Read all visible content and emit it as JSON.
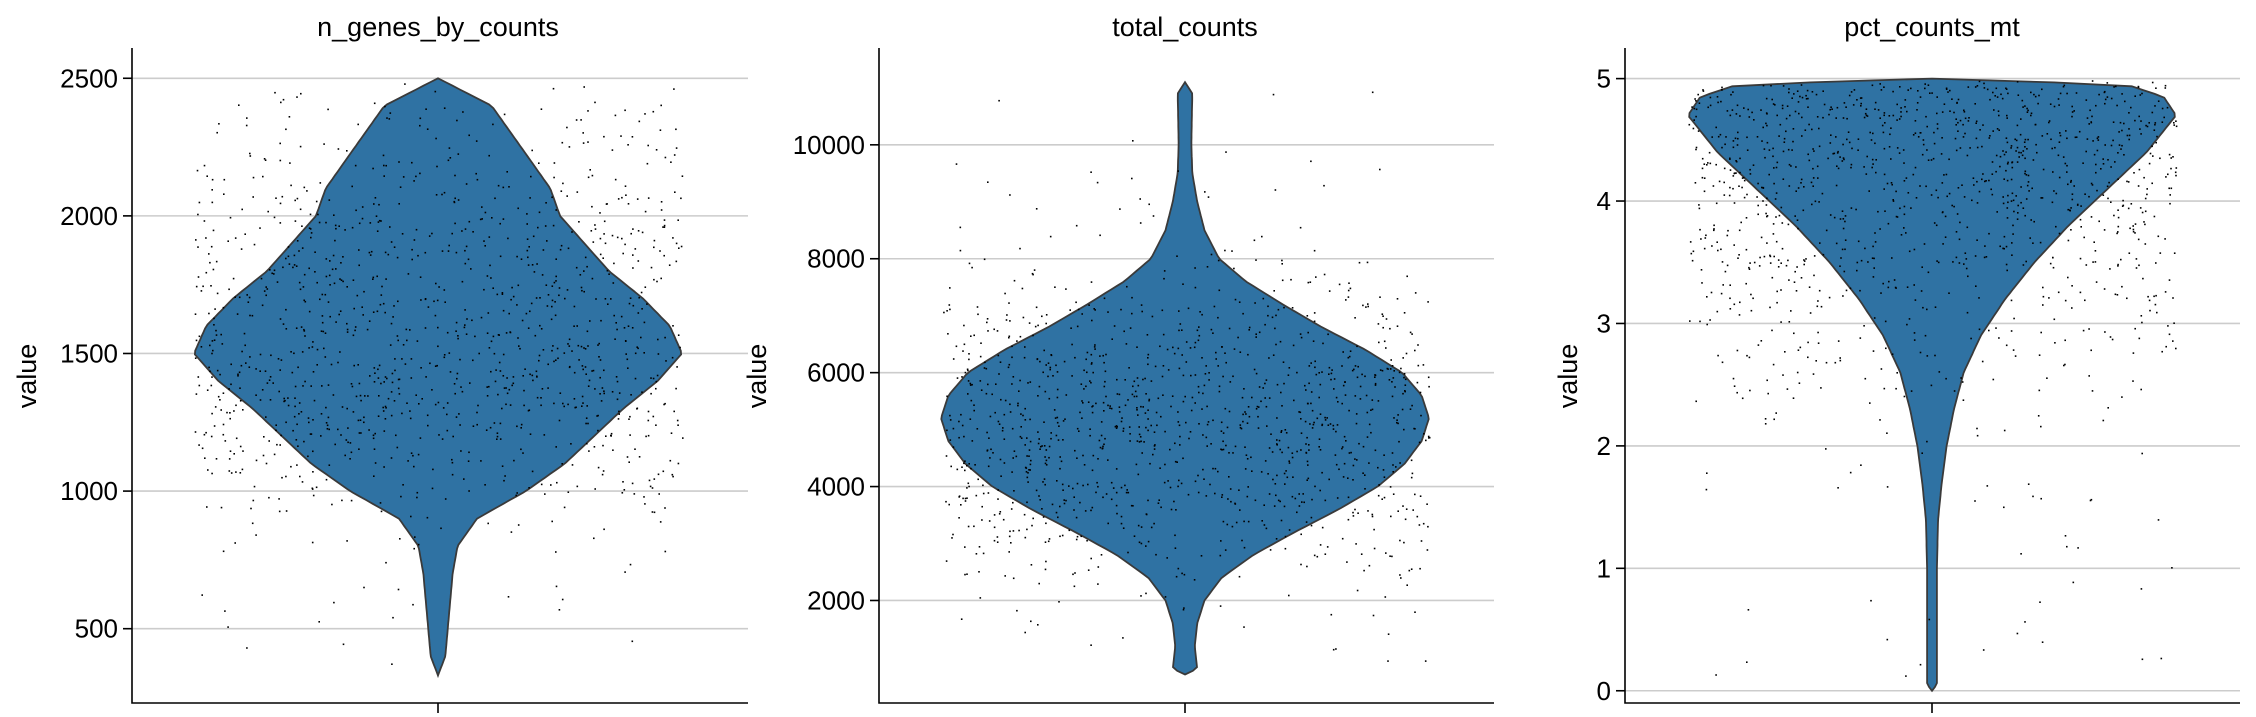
{
  "chart_data": [
    {
      "type": "violin",
      "title": "n_genes_by_counts",
      "xlabel": "",
      "ylabel": "value",
      "ylim": [
        230,
        2610
      ],
      "yticks": [
        500,
        1000,
        1500,
        2000,
        2500
      ],
      "grid": true,
      "color": "#2f72a3",
      "summary": {
        "min": 330,
        "max": 2500,
        "median": 1580,
        "mode": 1520,
        "n_points": 1200
      },
      "density_profile": [
        [
          330,
          0.0
        ],
        [
          400,
          0.03
        ],
        [
          500,
          0.04
        ],
        [
          600,
          0.05
        ],
        [
          700,
          0.06
        ],
        [
          800,
          0.08
        ],
        [
          900,
          0.16
        ],
        [
          1000,
          0.36
        ],
        [
          1100,
          0.52
        ],
        [
          1200,
          0.64
        ],
        [
          1300,
          0.76
        ],
        [
          1400,
          0.9
        ],
        [
          1500,
          1.0
        ],
        [
          1600,
          0.95
        ],
        [
          1700,
          0.84
        ],
        [
          1800,
          0.7
        ],
        [
          1900,
          0.6
        ],
        [
          2000,
          0.5
        ],
        [
          2100,
          0.46
        ],
        [
          2200,
          0.38
        ],
        [
          2300,
          0.3
        ],
        [
          2400,
          0.22
        ],
        [
          2500,
          0.0
        ]
      ]
    },
    {
      "type": "violin",
      "title": "total_counts",
      "xlabel": "",
      "ylabel": "value",
      "ylim": [
        200,
        11700
      ],
      "yticks": [
        2000,
        4000,
        6000,
        8000,
        10000
      ],
      "grid": true,
      "color": "#2f72a3",
      "summary": {
        "min": 700,
        "max": 11100,
        "median": 5400,
        "mode": 5300,
        "n_points": 1200
      },
      "density_profile": [
        [
          700,
          0.0
        ],
        [
          800,
          0.05
        ],
        [
          1200,
          0.04
        ],
        [
          1600,
          0.05
        ],
        [
          2000,
          0.08
        ],
        [
          2400,
          0.15
        ],
        [
          2800,
          0.28
        ],
        [
          3200,
          0.45
        ],
        [
          3600,
          0.63
        ],
        [
          4000,
          0.79
        ],
        [
          4400,
          0.9
        ],
        [
          4800,
          0.97
        ],
        [
          5200,
          1.0
        ],
        [
          5600,
          0.97
        ],
        [
          6000,
          0.89
        ],
        [
          6400,
          0.74
        ],
        [
          6800,
          0.56
        ],
        [
          7200,
          0.4
        ],
        [
          7600,
          0.25
        ],
        [
          8000,
          0.14
        ],
        [
          8500,
          0.08
        ],
        [
          9000,
          0.05
        ],
        [
          9500,
          0.03
        ],
        [
          10000,
          0.026
        ],
        [
          10500,
          0.028
        ],
        [
          10900,
          0.03
        ],
        [
          11100,
          0.0
        ]
      ]
    },
    {
      "type": "violin",
      "title": "pct_counts_mt",
      "xlabel": "",
      "ylabel": "value",
      "ylim": [
        -0.1,
        5.25
      ],
      "yticks": [
        0,
        1,
        2,
        3,
        4,
        5
      ],
      "grid": true,
      "color": "#2f72a3",
      "summary": {
        "min": 0.0,
        "max": 5.0,
        "median": 4.3,
        "mode": 4.7,
        "n_points": 1200
      },
      "density_profile": [
        [
          0.0,
          0.0
        ],
        [
          0.05,
          0.02
        ],
        [
          0.3,
          0.02
        ],
        [
          0.6,
          0.02
        ],
        [
          1.0,
          0.02
        ],
        [
          1.4,
          0.025
        ],
        [
          1.7,
          0.04
        ],
        [
          2.0,
          0.06
        ],
        [
          2.3,
          0.09
        ],
        [
          2.6,
          0.13
        ],
        [
          2.9,
          0.2
        ],
        [
          3.2,
          0.3
        ],
        [
          3.5,
          0.42
        ],
        [
          3.8,
          0.56
        ],
        [
          4.1,
          0.72
        ],
        [
          4.4,
          0.88
        ],
        [
          4.7,
          1.0
        ],
        [
          4.85,
          0.95
        ],
        [
          4.95,
          0.8
        ],
        [
          5.0,
          0.0
        ]
      ]
    }
  ]
}
